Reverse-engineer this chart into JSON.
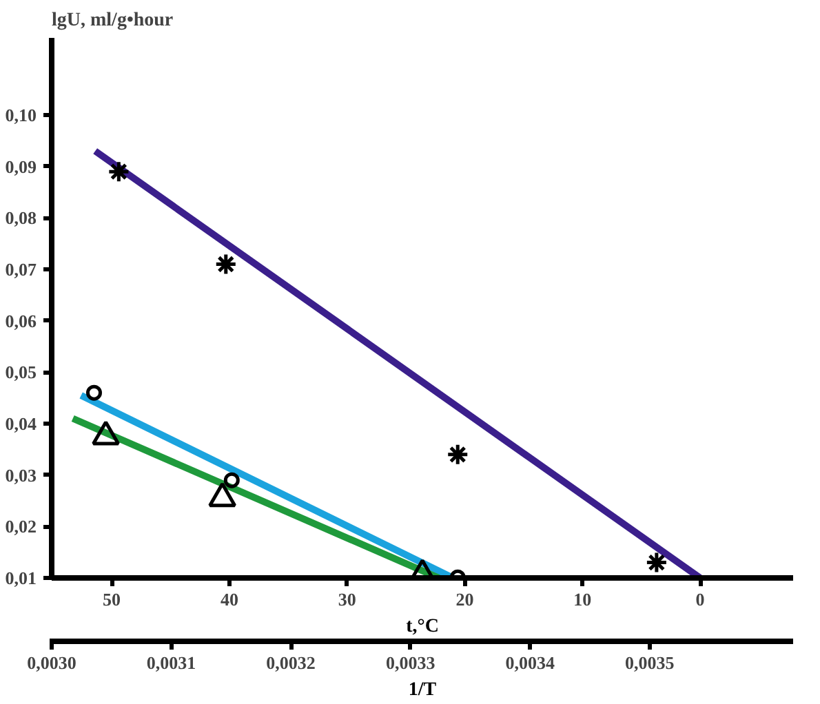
{
  "chart_data": {
    "type": "line",
    "ylabel": "lgU, ml/g•hour",
    "xlabel": "t,°C",
    "x2label": "1/T",
    "grid": false,
    "xlim": [
      55.1,
      -7.9
    ],
    "xticks": [
      50,
      40,
      30,
      20,
      10,
      0
    ],
    "x2lim": [
      0.003,
      0.00362
    ],
    "x2ticks": [
      {
        "value": 0.003,
        "label": "0,0030"
      },
      {
        "value": 0.0031,
        "label": "0,0031"
      },
      {
        "value": 0.0032,
        "label": "0,0032"
      },
      {
        "value": 0.0033,
        "label": "0,0033"
      },
      {
        "value": 0.0034,
        "label": "0,0034"
      },
      {
        "value": 0.0035,
        "label": "0,0035"
      }
    ],
    "ylim": [
      0.01,
      0.115
    ],
    "yticks": [
      {
        "value": 0.01,
        "label": "0,01"
      },
      {
        "value": 0.02,
        "label": "0,02"
      },
      {
        "value": 0.03,
        "label": "0,03"
      },
      {
        "value": 0.04,
        "label": "0,04"
      },
      {
        "value": 0.05,
        "label": "0,05"
      },
      {
        "value": 0.06,
        "label": "0,06"
      },
      {
        "value": 0.07,
        "label": "0,07"
      },
      {
        "value": 0.08,
        "label": "0,08"
      },
      {
        "value": 0.09,
        "label": "0,09"
      },
      {
        "value": 0.1,
        "label": "0,10"
      }
    ],
    "series": [
      {
        "color": "#3b1f8c",
        "x": [
          51.4,
          0
        ],
        "values": [
          0.093,
          0.01
        ]
      },
      {
        "color": "#1ba3de",
        "x": [
          52.6,
          21.0
        ],
        "values": [
          0.0455,
          0.01
        ]
      },
      {
        "color": "#1f9a3c",
        "x": [
          53.3,
          22.2
        ],
        "values": [
          0.041,
          0.01
        ]
      },
      {
        "type": "scatter",
        "marker": "cross",
        "color": "#000000",
        "x": [
          49.4,
          40.3,
          20.6,
          3.7
        ],
        "values": [
          0.089,
          0.071,
          0.034,
          0.013
        ]
      },
      {
        "type": "scatter",
        "marker": "circle",
        "color": "#000000",
        "x": [
          51.5,
          39.8,
          20.6
        ],
        "values": [
          0.046,
          0.029,
          0.0101
        ]
      },
      {
        "type": "scatter",
        "marker": "triangle",
        "color": "#000000",
        "x": [
          50.5,
          40.6,
          23.6
        ],
        "values": [
          0.0375,
          0.0255,
          0.0106
        ]
      }
    ]
  }
}
